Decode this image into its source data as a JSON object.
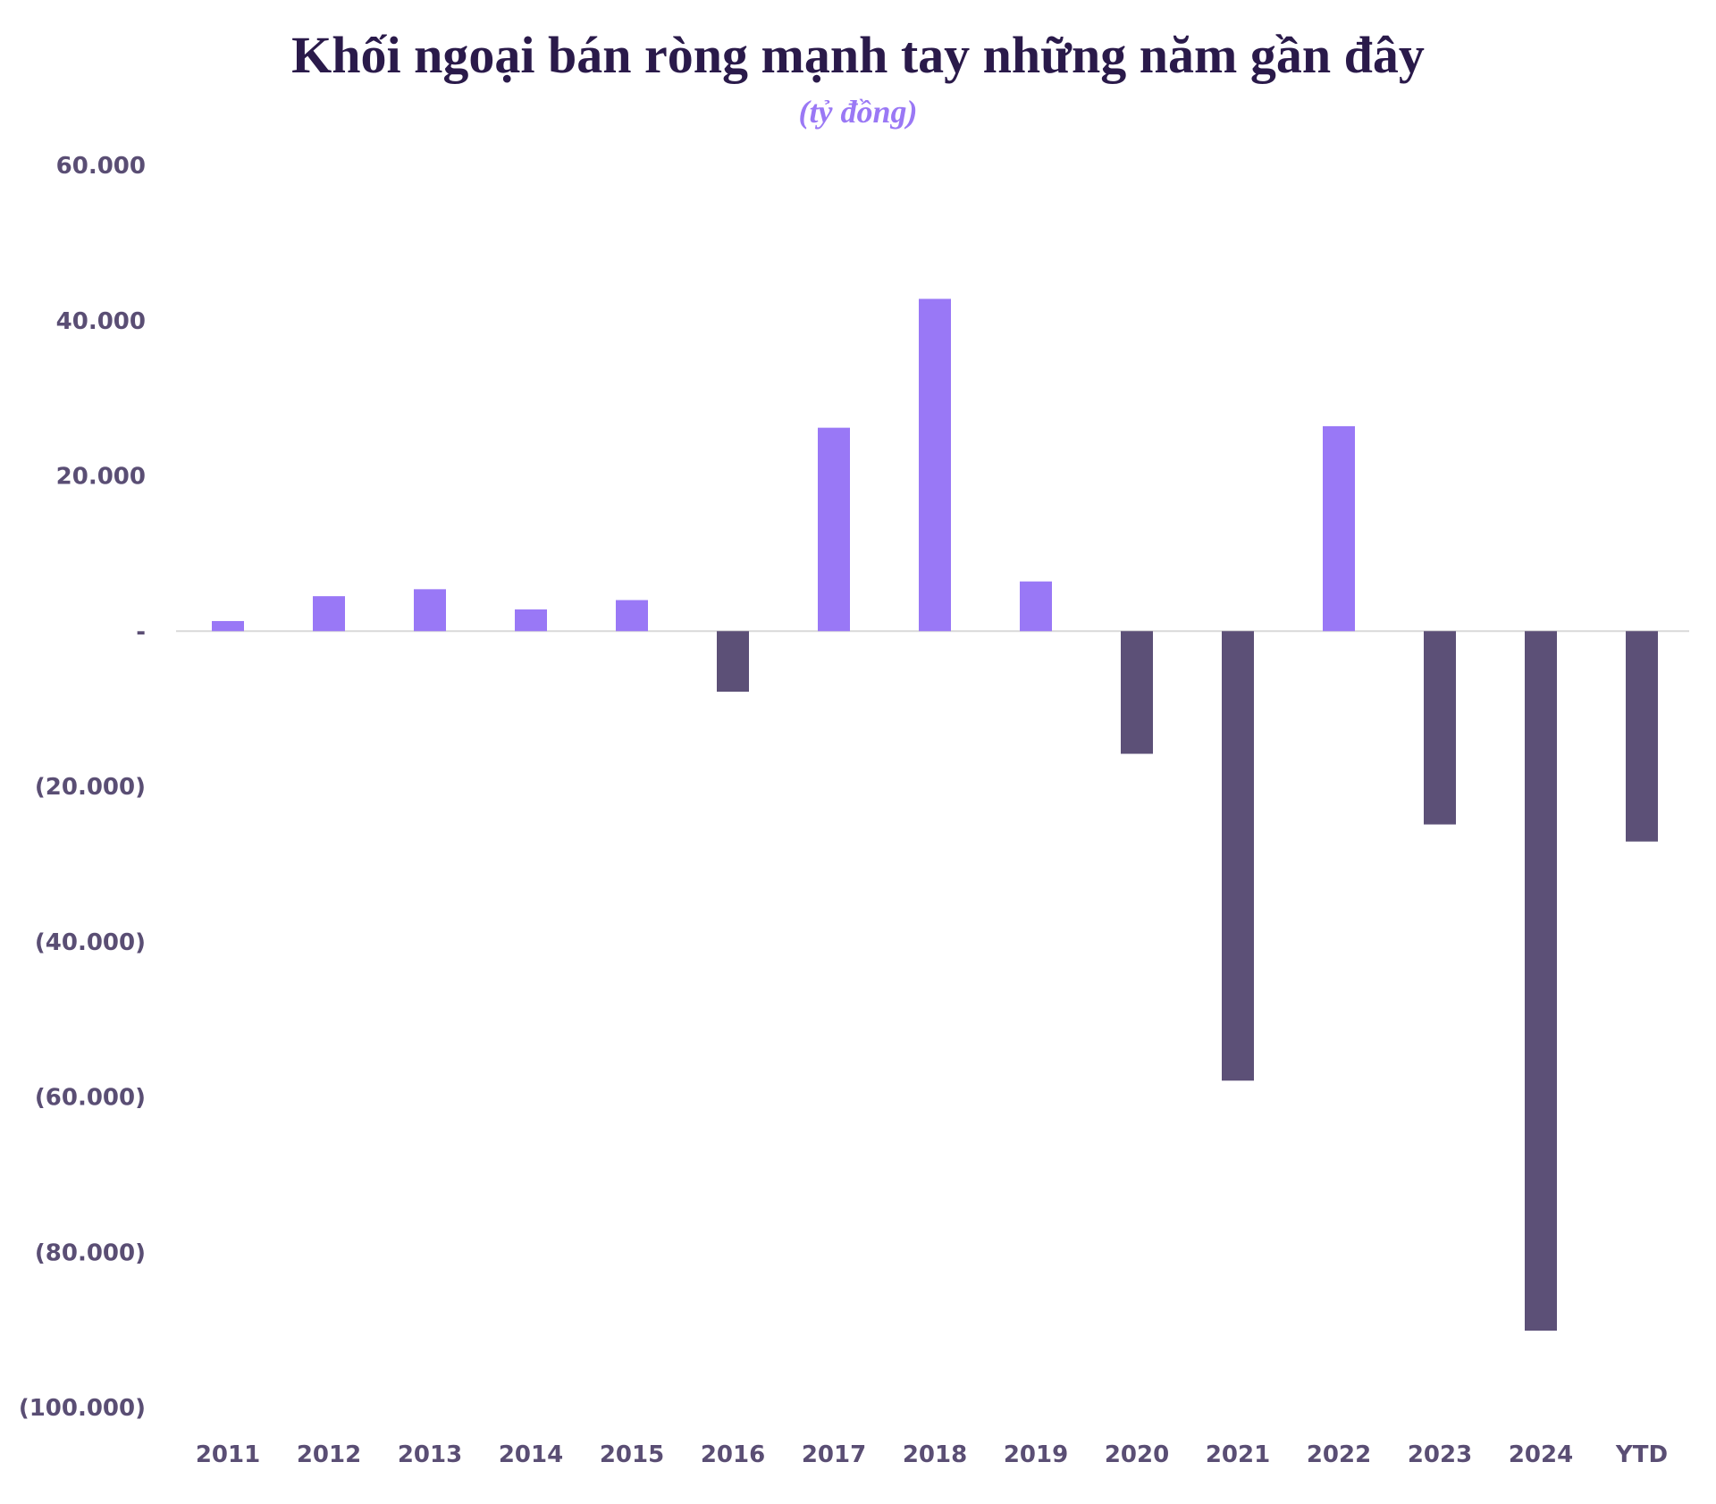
{
  "chart_data": {
    "type": "bar",
    "title": "Khối ngoại bán ròng mạnh tay những năm gần đây",
    "subtitle": "(tỷ đồng)",
    "categories": [
      "2011",
      "2012",
      "2013",
      "2014",
      "2015",
      "2016",
      "2017",
      "2018",
      "2019",
      "2020",
      "2021",
      "2022",
      "2023",
      "2024",
      "YTD"
    ],
    "values": [
      1300,
      4500,
      5400,
      2800,
      4000,
      -7800,
      26200,
      42800,
      6400,
      -15800,
      -57900,
      26400,
      -24900,
      -90100,
      -27100
    ],
    "ylim": [
      -100000,
      60000
    ],
    "yticks": [
      60000,
      40000,
      20000,
      0,
      -20000,
      -40000,
      -60000,
      -80000,
      -100000
    ],
    "ytick_labels": [
      "60.000",
      "40.000",
      "20.000",
      "-",
      "(20.000)",
      "(40.000)",
      "(60.000)",
      "(80.000)",
      "(100.000)"
    ],
    "grid": false,
    "colors": {
      "positive": "#9978f6",
      "negative": "#5c5077",
      "axis": "#d9d9d9"
    }
  }
}
